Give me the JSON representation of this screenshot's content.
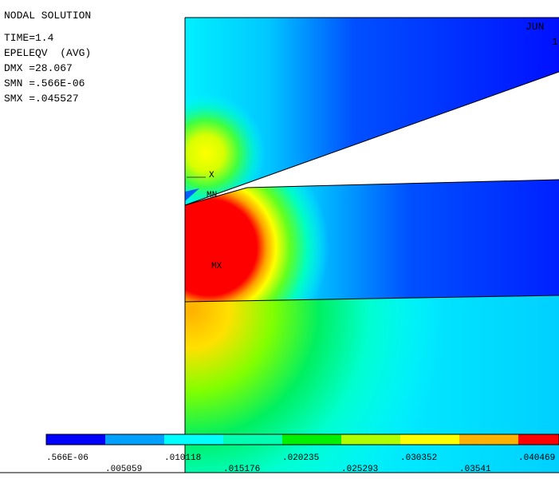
{
  "header": {
    "title": "NODAL SOLUTION",
    "lines": [
      "TIME=1.4",
      "EPELEQV  (AVG)",
      "DMX =28.067",
      "SMN =.566E-06",
      "SMX =.045527"
    ]
  },
  "plot": {
    "labels": [
      "JUN",
      "1",
      "X",
      "MN",
      "MX"
    ]
  },
  "legend": {
    "labels": [
      ".566E-06",
      ".005059",
      ".010118",
      ".015176",
      ".020235",
      ".025293",
      ".030352",
      ".03541",
      ".040469"
    ],
    "colors": [
      "#0000ff",
      "#00a0ff",
      "#00ffff",
      "#00ffb0",
      "#00f000",
      "#b0ff00",
      "#ffff00",
      "#ffb000",
      "#ff0000"
    ]
  }
}
